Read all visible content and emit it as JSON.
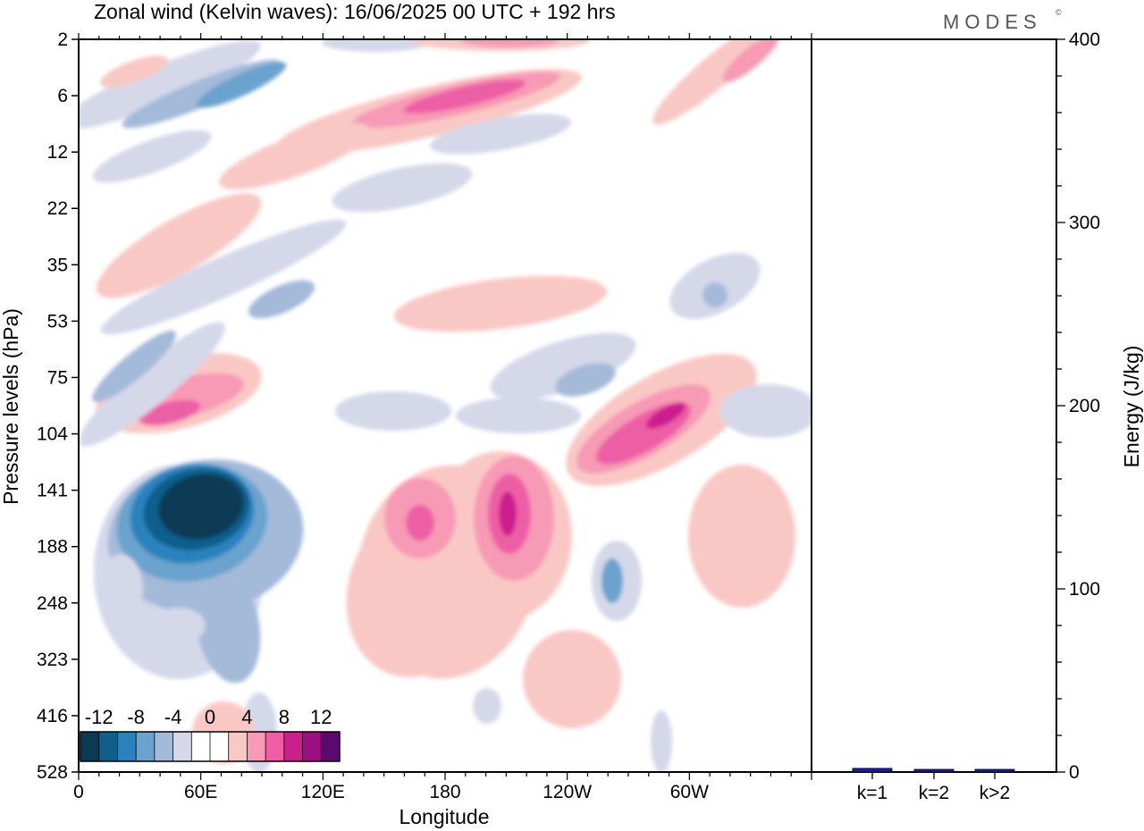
{
  "title": "Zonal wind (Kelvin waves):  16/06/2025  00 UTC  + 192 hrs",
  "logo": "MODES",
  "logo_mark": "©",
  "chart_data": [
    {
      "type": "heatmap",
      "xlabel": "Longitude",
      "ylabel": "Pressure levels (hPa)",
      "x_ticks": [
        "0",
        "60E",
        "120E",
        "180",
        "120W",
        "60W"
      ],
      "x_tick_lon": [
        0,
        60,
        120,
        180,
        240,
        300
      ],
      "xlim": [
        0,
        360
      ],
      "y_ticks": [
        "2",
        "6",
        "12",
        "22",
        "35",
        "53",
        "75",
        "104",
        "141",
        "188",
        "248",
        "323",
        "416",
        "528"
      ],
      "y_scale": "log-like pressure levels",
      "colorbar": {
        "labels": [
          "-12",
          "-8",
          "-4",
          "0",
          "4",
          "8",
          "12"
        ],
        "colors": [
          "#0b3a55",
          "#0f5f8c",
          "#2a82bd",
          "#6aa3cd",
          "#a3bad9",
          "#d4d8e9",
          "#ffffff",
          "#ffffff",
          "#f9c8c4",
          "#f79ab5",
          "#ed5ea5",
          "#cc1f8e",
          "#9b1083",
          "#5a0a6e"
        ]
      },
      "features": [
        {
          "level": -12,
          "lon": 45,
          "p": 150
        },
        {
          "level": 10,
          "lon": 40,
          "p": 95
        },
        {
          "level": 10,
          "lon": 196,
          "p": 140
        },
        {
          "level": 10,
          "lon": 287,
          "p": 92
        },
        {
          "level": 8,
          "lon": 178,
          "p": 150
        },
        {
          "level": 8,
          "lon": 180,
          "p": 6
        },
        {
          "level": -6,
          "lon": 255,
          "p": 205
        },
        {
          "level": -6,
          "lon": 245,
          "p": 78
        },
        {
          "level": -6,
          "lon": 90,
          "p": 5
        }
      ]
    },
    {
      "type": "bar",
      "categories": [
        "k=1",
        "k=2",
        "k>2"
      ],
      "values": [
        2,
        0.8,
        0.8
      ],
      "ylabel": "Energy (J/kg)",
      "ylim": [
        0,
        400
      ],
      "y_ticks": [
        0,
        100,
        200,
        300,
        400
      ],
      "bar_color": "#1a1aa8"
    }
  ]
}
